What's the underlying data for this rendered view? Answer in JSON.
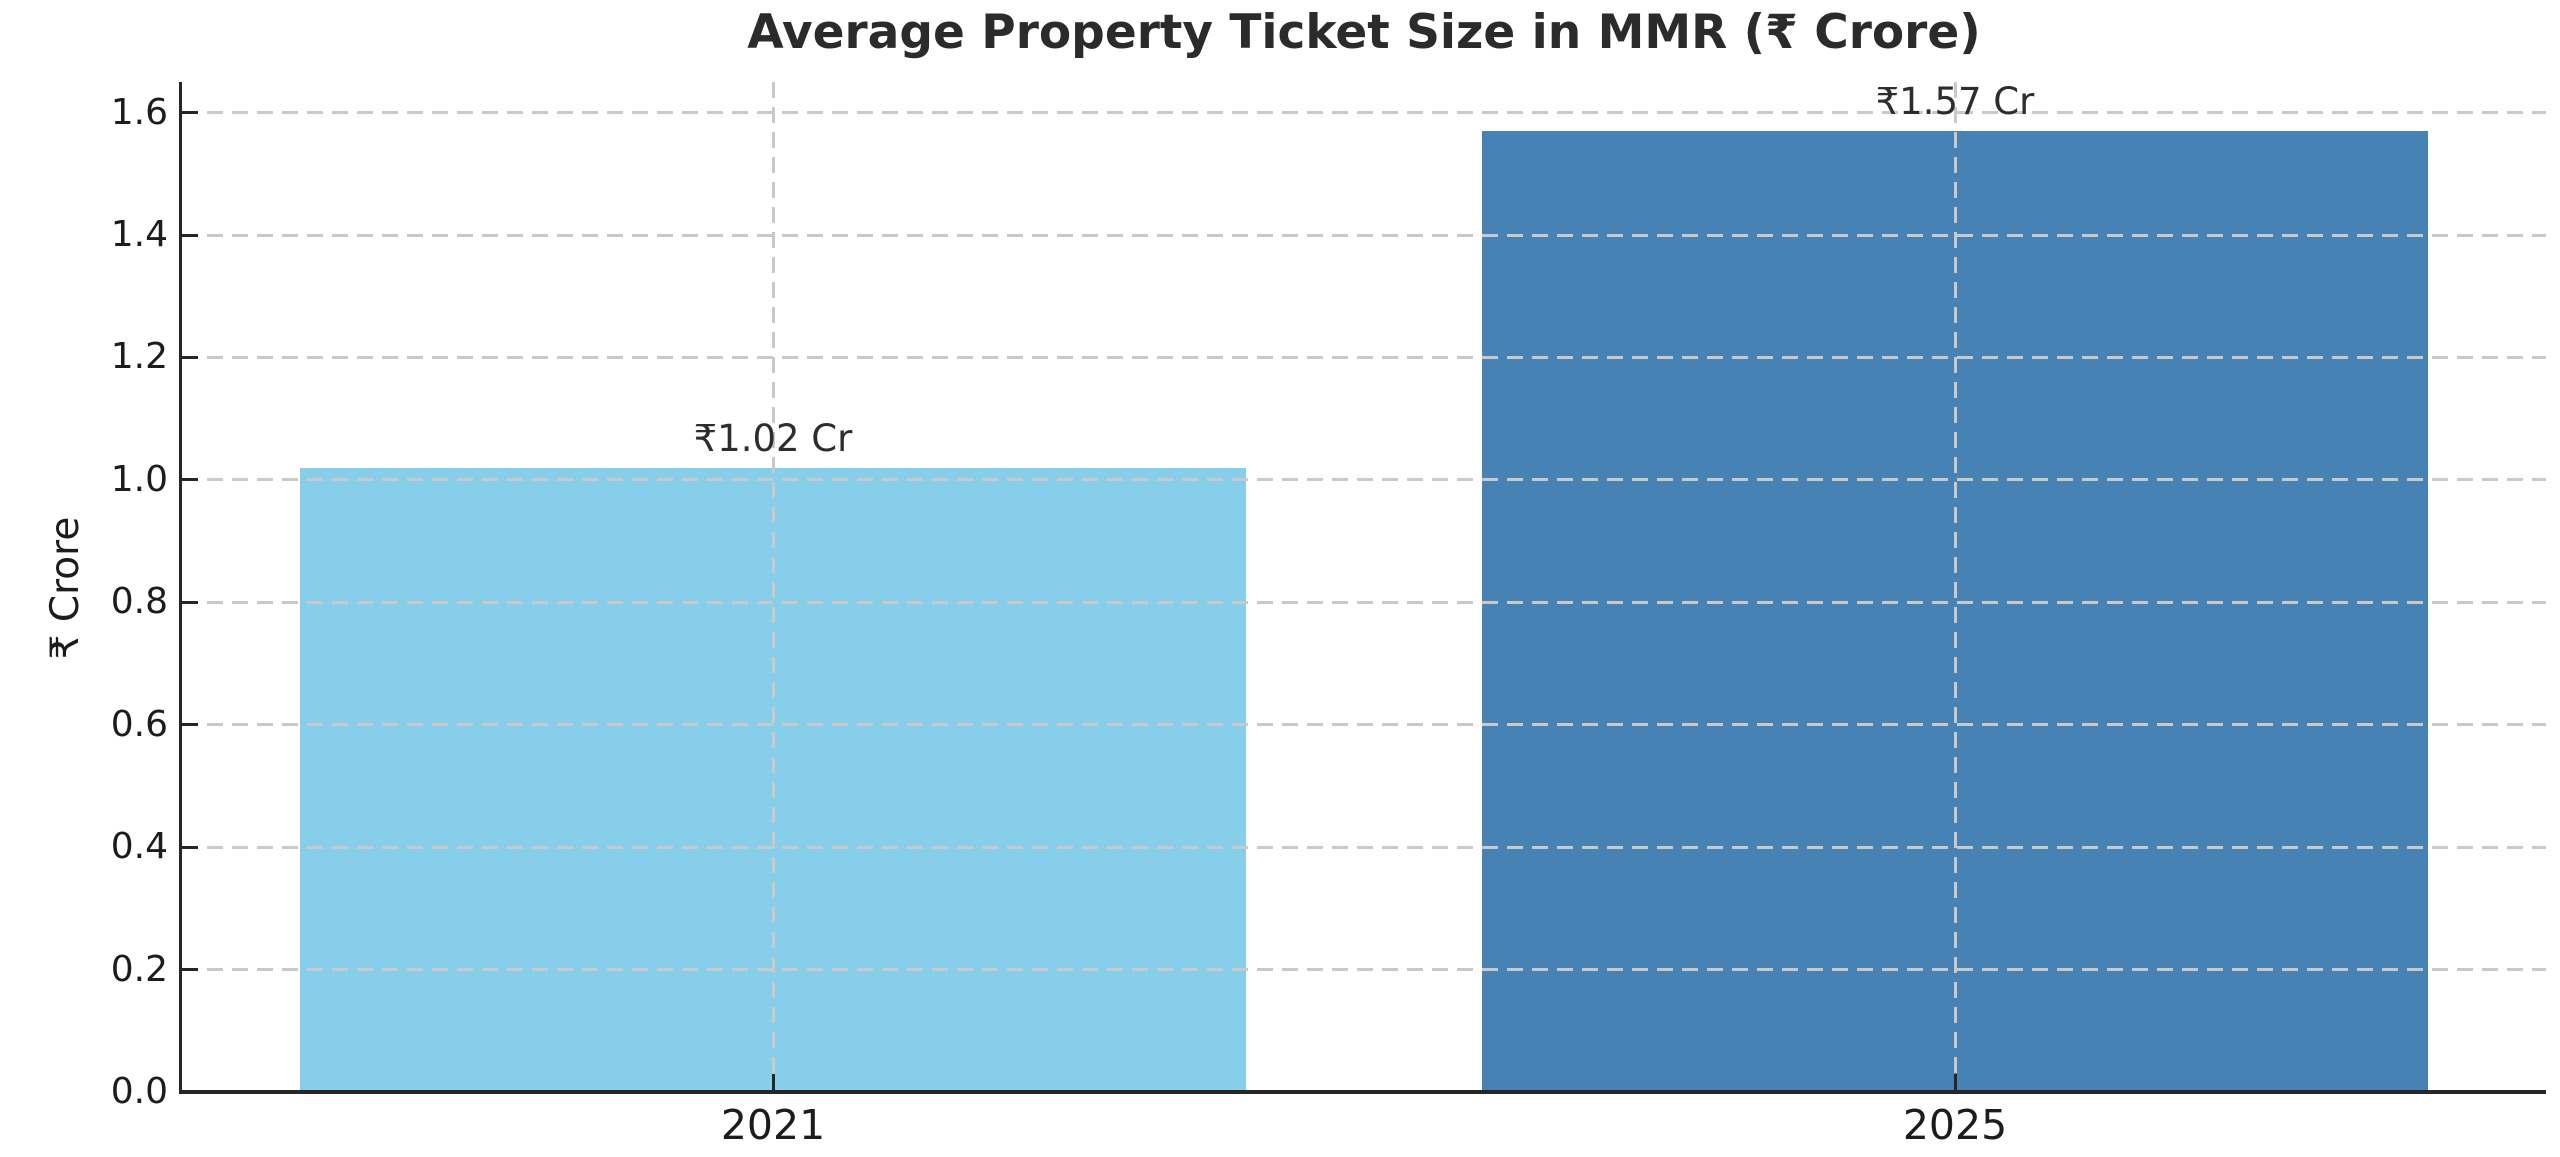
{
  "chart_data": {
    "type": "bar",
    "title": "Average Property Ticket Size in MMR (₹ Crore)",
    "xlabel": "",
    "ylabel": "₹ Crore",
    "categories": [
      "2021",
      "2025"
    ],
    "values": [
      1.02,
      1.57
    ],
    "bar_labels": [
      "₹1.02 Cr",
      "₹1.57 Cr"
    ],
    "bar_colors": [
      "#87CEEB",
      "#4682B4"
    ],
    "ylim": [
      0,
      1.65
    ],
    "xlim": [
      -0.5,
      1.5
    ],
    "bar_width": 0.8,
    "yticks": [
      0.0,
      0.2,
      0.4,
      0.6,
      0.8,
      1.0,
      1.2,
      1.4,
      1.6
    ],
    "ytick_labels": [
      "0.0",
      "0.2",
      "0.4",
      "0.6",
      "0.8",
      "1.0",
      "1.2",
      "1.4",
      "1.6"
    ],
    "grid": "both-dashed-over-bars",
    "legend": "none",
    "colors": {
      "background": "#ffffff",
      "grid": "#c9c9c9",
      "spine": "#262626",
      "title_text": "#2b2b2b",
      "tick_text": "#1c1c1c",
      "bar_label_text": "#2d2d2d"
    }
  }
}
